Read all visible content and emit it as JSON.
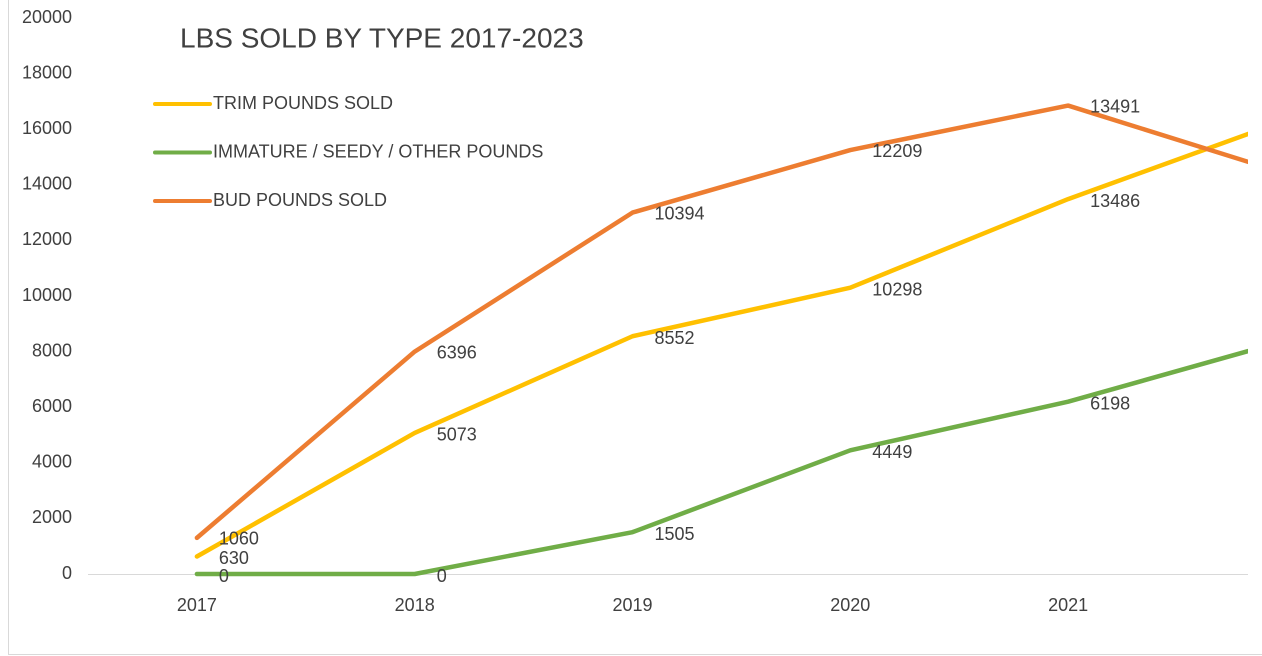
{
  "chart_data": {
    "type": "line",
    "title": "LBS SOLD BY TYPE 2017-2023",
    "categories": [
      "2017",
      "2018",
      "2019",
      "2020",
      "2021",
      null
    ],
    "series": [
      {
        "name": "TRIM POUNDS SOLD",
        "color": "#FFC000",
        "values": [
          630,
          5073,
          8552,
          10298,
          13486,
          16320
        ]
      },
      {
        "name": "IMMATURE / SEEDY / OTHER POUNDS",
        "color": "#70AD47",
        "values": [
          0,
          0,
          1505,
          4449,
          6198,
          8400
        ]
      },
      {
        "name": "BUD POUNDS SOLD",
        "color": "#ED7D31",
        "values": [
          1300,
          8000,
          13000,
          15250,
          16850,
          14400
        ]
      }
    ],
    "annotations": [
      "1060",
      "6396",
      "10394",
      "12209",
      "13491"
    ],
    "ylim": [
      0,
      20000
    ],
    "yticks": [
      0,
      2000,
      4000,
      6000,
      8000,
      10000,
      12000,
      14000,
      16000,
      18000,
      20000
    ],
    "grid": false,
    "legend": "upper left"
  }
}
